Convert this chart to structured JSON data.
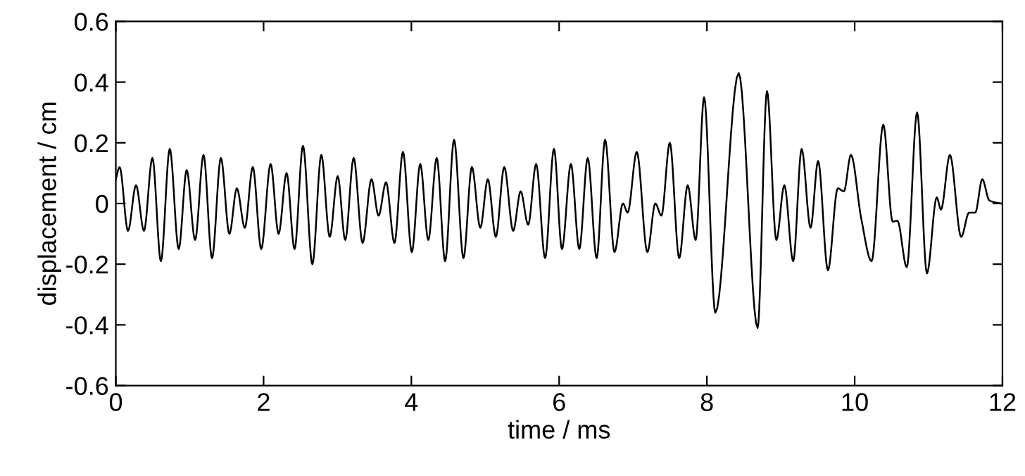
{
  "chart_data": {
    "type": "line",
    "xlabel": "time / ms",
    "ylabel": "displacement / cm",
    "xlim": [
      0,
      12
    ],
    "ylim": [
      -0.6,
      0.6
    ],
    "xticks": [
      0,
      2,
      4,
      6,
      8,
      10,
      12
    ],
    "yticks": [
      -0.6,
      -0.4,
      -0.2,
      0,
      0.2,
      0.4,
      0.6
    ],
    "grid": false,
    "legend": false,
    "marker": "none",
    "line_style": "solid",
    "series": [
      {
        "color": "#000000",
        "x": [
          0,
          0.051,
          0.165,
          0.273,
          0.381,
          0.495,
          0.61,
          0.73,
          0.851,
          0.959,
          1.073,
          1.187,
          1.302,
          1.422,
          1.537,
          1.638,
          1.746,
          1.854,
          1.968,
          2.095,
          2.203,
          2.311,
          2.419,
          2.533,
          2.66,
          2.781,
          2.895,
          3.003,
          3.105,
          3.219,
          3.34,
          3.46,
          3.556,
          3.657,
          3.771,
          3.886,
          4.006,
          4.12,
          4.229,
          4.343,
          4.457,
          4.578,
          4.705,
          4.819,
          4.933,
          5.035,
          5.143,
          5.257,
          5.378,
          5.479,
          5.581,
          5.689,
          5.81,
          5.93,
          6.038,
          6.159,
          6.273,
          6.387,
          6.508,
          6.622,
          6.749,
          6.864,
          6.927,
          7.051,
          7.194,
          7.302,
          7.384,
          7.498,
          7.625,
          7.74,
          7.848,
          7.962,
          8.114,
          8.43,
          8.686,
          8.813,
          8.94,
          9.048,
          9.168,
          9.282,
          9.403,
          9.505,
          9.638,
          9.771,
          9.854,
          9.949,
          10.089,
          10.229,
          10.387,
          10.514,
          10.578,
          10.705,
          10.845,
          10.978,
          11.111,
          11.168,
          11.289,
          11.441,
          11.549,
          11.632,
          11.727,
          11.822,
          11.98
        ],
        "values": [
          0.08,
          0.12,
          -0.09,
          0.06,
          -0.09,
          0.15,
          -0.19,
          0.18,
          -0.15,
          0.11,
          -0.12,
          0.16,
          -0.18,
          0.15,
          -0.1,
          0.05,
          -0.08,
          0.12,
          -0.15,
          0.13,
          -0.1,
          0.1,
          -0.15,
          0.19,
          -0.2,
          0.16,
          -0.11,
          0.09,
          -0.12,
          0.15,
          -0.13,
          0.08,
          -0.04,
          0.07,
          -0.13,
          0.17,
          -0.16,
          0.13,
          -0.12,
          0.15,
          -0.19,
          0.21,
          -0.18,
          0.12,
          -0.08,
          0.08,
          -0.11,
          0.12,
          -0.09,
          0.04,
          -0.07,
          0.13,
          -0.18,
          0.18,
          -0.15,
          0.13,
          -0.15,
          0.15,
          -0.18,
          0.21,
          -0.16,
          0.0,
          -0.03,
          0.17,
          -0.16,
          0.0,
          -0.04,
          0.2,
          -0.18,
          0.06,
          -0.12,
          0.35,
          -0.36,
          0.43,
          -0.41,
          0.37,
          -0.12,
          0.06,
          -0.19,
          0.18,
          -0.08,
          0.14,
          -0.22,
          0.05,
          0.04,
          0.16,
          -0.05,
          -0.19,
          0.26,
          -0.06,
          -0.057,
          -0.21,
          0.3,
          -0.23,
          0.02,
          -0.02,
          0.16,
          -0.11,
          -0.03,
          -0.03,
          0.08,
          0.01,
          0.0
        ]
      }
    ]
  }
}
